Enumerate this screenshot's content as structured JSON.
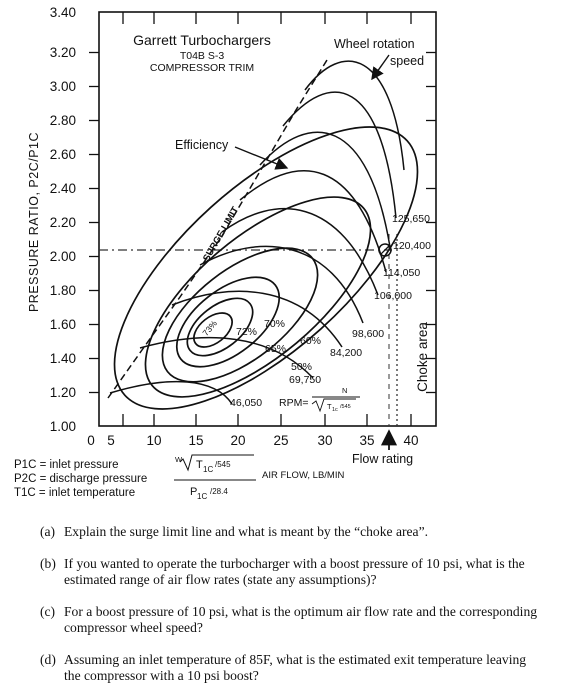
{
  "chart": {
    "title": "Garrett Turbochargers",
    "model": "T04B S-3",
    "trim": "COMPRESSOR TRIM",
    "ylabel": "PRESSURE RATIO, P2C/P1C",
    "y_ticks": [
      "1.00",
      "1.20",
      "1.40",
      "1.60",
      "1.80",
      "2.00",
      "2.20",
      "2.40",
      "2.60",
      "2.80",
      "3.00",
      "3.20",
      "3.40"
    ],
    "x_ticks": [
      "0",
      "5",
      "10",
      "15",
      "20",
      "25",
      "30",
      "35",
      "40"
    ],
    "x_numerator": "W",
    "x_sqrt_var": "T",
    "x_sqrt_sub": "1C",
    "x_sqrt_div": "/545",
    "x_denominator": "P",
    "x_denominator_sub": "1C",
    "x_denominator_div": "/28.4",
    "x_axis_label": "AIR FLOW, LB/MIN",
    "surge_label": "SURGE LIMIT",
    "efficiency_label": "Efficiency",
    "wheel_label_line1": "Wheel rotation",
    "wheel_label_line2": "speed",
    "choke_label": "Choke area",
    "flow_rating_label": "Flow rating",
    "rpm_axis_label": "RPM=",
    "rpm_n": "N",
    "rpm_sqrt_var": "T",
    "rpm_sqrt_sub": "1c",
    "rpm_sqrt_div": "/545",
    "efficiency_islands": [
      "73%",
      "72%",
      "70%",
      "65%",
      "60%",
      "50%"
    ],
    "speed_lines": [
      "125,650",
      "120,400",
      "114,050",
      "106,000",
      "98,600",
      "84,200",
      "69,750",
      "46,050"
    ]
  },
  "legend": [
    "P1C = inlet pressure",
    "P2C = discharge pressure",
    "T1C = inlet temperature"
  ],
  "questions": [
    {
      "label": "(a)",
      "text": "Explain the surge limit line and what is meant by the “choke area”."
    },
    {
      "label": "(b)",
      "text": "If you wanted to operate the turbocharger with a boost pressure of 10 psi, what is the estimated range of air flow rates (state any assumptions)?"
    },
    {
      "label": "(c)",
      "text": "For a boost pressure of 10 psi, what is the optimum air flow rate and the corresponding compressor wheel speed?"
    },
    {
      "label": "(d)",
      "text": "Assuming an inlet temperature of 85F, what is the estimated exit temperature leaving the compressor with a 10 psi boost?"
    }
  ]
}
